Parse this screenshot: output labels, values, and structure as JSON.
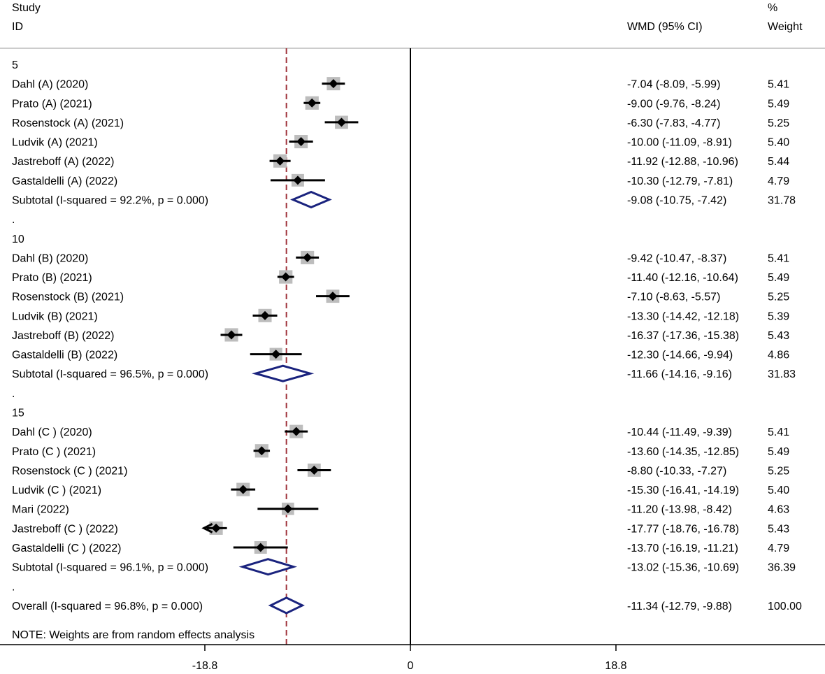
{
  "chart_data": {
    "type": "forest",
    "header": {
      "study_line1": "Study",
      "study_line2": "ID",
      "effect_label": "WMD (95% CI)",
      "weight_line1": "%",
      "weight_line2": "Weight"
    },
    "x_axis": {
      "range": [
        -35.9,
        35.9
      ],
      "ticks": [
        {
          "value": -18.8,
          "label": "-18.8"
        },
        {
          "value": 0,
          "label": "0"
        },
        {
          "value": 18.8,
          "label": "18.8"
        }
      ],
      "null_line": 0
    },
    "overall_reference": -11.34,
    "rows": [
      {
        "kind": "group",
        "label": "5"
      },
      {
        "kind": "study",
        "label": "Dahl (A) (2020)",
        "est": -7.04,
        "lo": -8.09,
        "hi": -5.99,
        "ci": "-7.04 (-8.09, -5.99)",
        "weight": "5.41",
        "w": 5.41
      },
      {
        "kind": "study",
        "label": "Prato (A) (2021)",
        "est": -9.0,
        "lo": -9.76,
        "hi": -8.24,
        "ci": "-9.00 (-9.76, -8.24)",
        "weight": "5.49",
        "w": 5.49
      },
      {
        "kind": "study",
        "label": "Rosenstock (A) (2021)",
        "est": -6.3,
        "lo": -7.83,
        "hi": -4.77,
        "ci": "-6.30 (-7.83, -4.77)",
        "weight": "5.25",
        "w": 5.25
      },
      {
        "kind": "study",
        "label": "Ludvik (A) (2021)",
        "est": -10.0,
        "lo": -11.09,
        "hi": -8.91,
        "ci": "-10.00 (-11.09, -8.91)",
        "weight": "5.40",
        "w": 5.4
      },
      {
        "kind": "study",
        "label": "Jastreboff (A) (2022)",
        "est": -11.92,
        "lo": -12.88,
        "hi": -10.96,
        "ci": "-11.92 (-12.88, -10.96)",
        "weight": "5.44",
        "w": 5.44
      },
      {
        "kind": "study",
        "label": "Gastaldelli (A) (2022)",
        "est": -10.3,
        "lo": -12.79,
        "hi": -7.81,
        "ci": "-10.30 (-12.79, -7.81)",
        "weight": "4.79",
        "w": 4.79
      },
      {
        "kind": "subtotal",
        "label": "Subtotal  (I-squared = 92.2%, p = 0.000)",
        "est": -9.08,
        "lo": -10.75,
        "hi": -7.42,
        "ci": "-9.08 (-10.75, -7.42)",
        "weight": "31.78"
      },
      {
        "kind": "spacer",
        "label": "."
      },
      {
        "kind": "group",
        "label": "10"
      },
      {
        "kind": "study",
        "label": "Dahl (B) (2020)",
        "est": -9.42,
        "lo": -10.47,
        "hi": -8.37,
        "ci": "-9.42 (-10.47, -8.37)",
        "weight": "5.41",
        "w": 5.41
      },
      {
        "kind": "study",
        "label": "Prato (B) (2021)",
        "est": -11.4,
        "lo": -12.16,
        "hi": -10.64,
        "ci": "-11.40 (-12.16, -10.64)",
        "weight": "5.49",
        "w": 5.49
      },
      {
        "kind": "study",
        "label": "Rosenstock (B) (2021)",
        "est": -7.1,
        "lo": -8.63,
        "hi": -5.57,
        "ci": "-7.10 (-8.63, -5.57)",
        "weight": "5.25",
        "w": 5.25
      },
      {
        "kind": "study",
        "label": "Ludvik (B) (2021)",
        "est": -13.3,
        "lo": -14.42,
        "hi": -12.18,
        "ci": "-13.30 (-14.42, -12.18)",
        "weight": "5.39",
        "w": 5.39
      },
      {
        "kind": "study",
        "label": "Jastreboff (B) (2022)",
        "est": -16.37,
        "lo": -17.36,
        "hi": -15.38,
        "ci": "-16.37 (-17.36, -15.38)",
        "weight": "5.43",
        "w": 5.43
      },
      {
        "kind": "study",
        "label": "Gastaldelli (B) (2022)",
        "est": -12.3,
        "lo": -14.66,
        "hi": -9.94,
        "ci": "-12.30 (-14.66, -9.94)",
        "weight": "4.86",
        "w": 4.86
      },
      {
        "kind": "subtotal",
        "label": "Subtotal  (I-squared = 96.5%, p = 0.000)",
        "est": -11.66,
        "lo": -14.16,
        "hi": -9.16,
        "ci": "-11.66 (-14.16, -9.16)",
        "weight": "31.83"
      },
      {
        "kind": "spacer",
        "label": "."
      },
      {
        "kind": "group",
        "label": "15"
      },
      {
        "kind": "study",
        "label": "Dahl (C ) (2020)",
        "est": -10.44,
        "lo": -11.49,
        "hi": -9.39,
        "ci": "-10.44 (-11.49, -9.39)",
        "weight": "5.41",
        "w": 5.41
      },
      {
        "kind": "study",
        "label": "Prato (C ) (2021)",
        "est": -13.6,
        "lo": -14.35,
        "hi": -12.85,
        "ci": "-13.60 (-14.35, -12.85)",
        "weight": "5.49",
        "w": 5.49
      },
      {
        "kind": "study",
        "label": "Rosenstock (C ) (2021)",
        "est": -8.8,
        "lo": -10.33,
        "hi": -7.27,
        "ci": "-8.80 (-10.33, -7.27)",
        "weight": "5.25",
        "w": 5.25
      },
      {
        "kind": "study",
        "label": "Ludvik (C ) (2021)",
        "est": -15.3,
        "lo": -16.41,
        "hi": -14.19,
        "ci": "-15.30 (-16.41, -14.19)",
        "weight": "5.40",
        "w": 5.4
      },
      {
        "kind": "study",
        "label": "Mari (2022)",
        "est": -11.2,
        "lo": -13.98,
        "hi": -8.42,
        "ci": "-11.20 (-13.98, -8.42)",
        "weight": "4.63",
        "w": 4.63
      },
      {
        "kind": "study",
        "label": "Jastreboff (C ) (2022)",
        "est": -17.77,
        "lo": -18.76,
        "hi": -16.78,
        "ci": "-17.77 (-18.76, -16.78)",
        "weight": "5.43",
        "w": 5.43,
        "arrow_left": true
      },
      {
        "kind": "study",
        "label": "Gastaldelli (C ) (2022)",
        "est": -13.7,
        "lo": -16.19,
        "hi": -11.21,
        "ci": "-13.70 (-16.19, -11.21)",
        "weight": "4.79",
        "w": 4.79
      },
      {
        "kind": "subtotal",
        "label": "Subtotal  (I-squared = 96.1%, p = 0.000)",
        "est": -13.02,
        "lo": -15.36,
        "hi": -10.69,
        "ci": "-13.02 (-15.36, -10.69)",
        "weight": "36.39"
      },
      {
        "kind": "spacer",
        "label": "."
      },
      {
        "kind": "overall",
        "label": "Overall  (I-squared = 96.8%, p = 0.000)",
        "est": -11.34,
        "lo": -12.79,
        "hi": -9.88,
        "ci": "-11.34 (-12.79, -9.88)",
        "weight": "100.00"
      }
    ],
    "note": "NOTE: Weights are from random effects analysis",
    "colors": {
      "point": "#000000",
      "square": "#bdbdbd",
      "diamond": "#1a237e",
      "overall_line": "#a0343c",
      "axis": "#000000",
      "header_rule": "#cccccc"
    }
  }
}
